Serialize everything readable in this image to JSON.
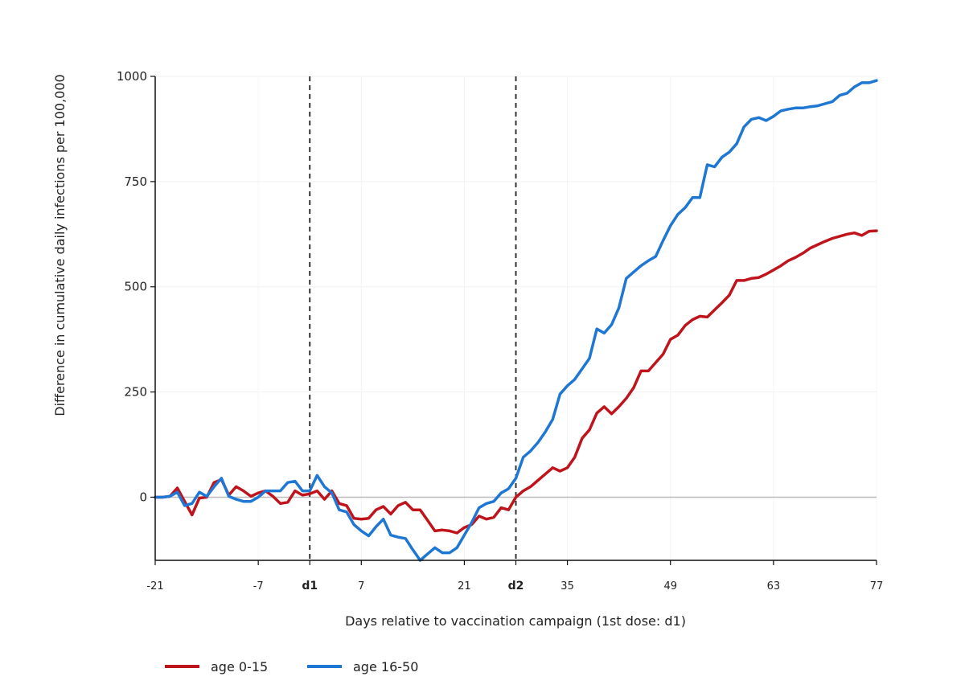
{
  "chart_data": {
    "type": "line",
    "title": "",
    "xlabel": "Days relative to vaccination campaign (1st dose: d1)",
    "ylabel": "Difference in cumulative daily infections per 100,000",
    "xlim": [
      -21,
      77
    ],
    "ylim": [
      -150,
      1000
    ],
    "x_ticks": [
      {
        "value": -21,
        "label": "-21",
        "bold": false
      },
      {
        "value": -7,
        "label": "-7",
        "bold": false
      },
      {
        "value": 0,
        "label": "d1",
        "bold": true
      },
      {
        "value": 7,
        "label": "7",
        "bold": false
      },
      {
        "value": 21,
        "label": "21",
        "bold": false
      },
      {
        "value": 28,
        "label": "d2",
        "bold": true
      },
      {
        "value": 35,
        "label": "35",
        "bold": false
      },
      {
        "value": 49,
        "label": "49",
        "bold": false
      },
      {
        "value": 63,
        "label": "63",
        "bold": false
      },
      {
        "value": 77,
        "label": "77",
        "bold": false
      }
    ],
    "y_ticks": [
      0,
      250,
      500,
      750,
      1000
    ],
    "vlines": [
      0,
      28
    ],
    "hline": 0,
    "grid": true,
    "legend_position": "bottom-left",
    "colors": {
      "age_0_15": "#c0141c",
      "age_16_50": "#1f77d4",
      "zero_line": "#bbbbbb",
      "vline": "#333333"
    },
    "series": [
      {
        "name": "age 0-15",
        "color": "#c0141c",
        "points": [
          [
            -21,
            0
          ],
          [
            -20,
            0
          ],
          [
            -19,
            2
          ],
          [
            -18,
            22
          ],
          [
            -17,
            -10
          ],
          [
            -16,
            -42
          ],
          [
            -15,
            -2
          ],
          [
            -14,
            0
          ],
          [
            -13,
            35
          ],
          [
            -12,
            42
          ],
          [
            -11,
            5
          ],
          [
            -10,
            25
          ],
          [
            -9,
            15
          ],
          [
            -8,
            2
          ],
          [
            -7,
            10
          ],
          [
            -6,
            15
          ],
          [
            -5,
            2
          ],
          [
            -4,
            -15
          ],
          [
            -3,
            -12
          ],
          [
            -2,
            15
          ],
          [
            -1,
            5
          ],
          [
            0,
            8
          ],
          [
            1,
            15
          ],
          [
            2,
            -5
          ],
          [
            3,
            15
          ],
          [
            4,
            -15
          ],
          [
            5,
            -20
          ],
          [
            6,
            -50
          ],
          [
            7,
            -52
          ],
          [
            8,
            -50
          ],
          [
            9,
            -30
          ],
          [
            10,
            -22
          ],
          [
            11,
            -40
          ],
          [
            12,
            -20
          ],
          [
            13,
            -12
          ],
          [
            14,
            -30
          ],
          [
            15,
            -30
          ],
          [
            16,
            -55
          ],
          [
            17,
            -80
          ],
          [
            18,
            -78
          ],
          [
            19,
            -80
          ],
          [
            20,
            -85
          ],
          [
            21,
            -72
          ],
          [
            22,
            -65
          ],
          [
            23,
            -45
          ],
          [
            24,
            -52
          ],
          [
            25,
            -48
          ],
          [
            26,
            -25
          ],
          [
            27,
            -30
          ],
          [
            28,
            0
          ],
          [
            29,
            15
          ],
          [
            30,
            25
          ],
          [
            31,
            40
          ],
          [
            32,
            55
          ],
          [
            33,
            70
          ],
          [
            34,
            62
          ],
          [
            35,
            70
          ],
          [
            36,
            95
          ],
          [
            37,
            140
          ],
          [
            38,
            160
          ],
          [
            39,
            200
          ],
          [
            40,
            215
          ],
          [
            41,
            198
          ],
          [
            42,
            215
          ],
          [
            43,
            235
          ],
          [
            44,
            260
          ],
          [
            45,
            300
          ],
          [
            46,
            300
          ],
          [
            47,
            320
          ],
          [
            48,
            340
          ],
          [
            49,
            375
          ],
          [
            50,
            385
          ],
          [
            51,
            408
          ],
          [
            52,
            422
          ],
          [
            53,
            430
          ],
          [
            54,
            428
          ],
          [
            55,
            445
          ],
          [
            56,
            462
          ],
          [
            57,
            480
          ],
          [
            58,
            515
          ],
          [
            59,
            515
          ],
          [
            60,
            520
          ],
          [
            61,
            522
          ],
          [
            62,
            530
          ],
          [
            63,
            540
          ],
          [
            64,
            550
          ],
          [
            65,
            562
          ],
          [
            66,
            570
          ],
          [
            67,
            580
          ],
          [
            68,
            592
          ],
          [
            69,
            600
          ],
          [
            70,
            608
          ],
          [
            71,
            615
          ],
          [
            72,
            620
          ],
          [
            73,
            625
          ],
          [
            74,
            628
          ],
          [
            75,
            622
          ],
          [
            76,
            632
          ],
          [
            77,
            633
          ]
        ]
      },
      {
        "name": "age 16-50",
        "color": "#1f77d4",
        "points": [
          [
            -21,
            0
          ],
          [
            -20,
            0
          ],
          [
            -19,
            2
          ],
          [
            -18,
            12
          ],
          [
            -17,
            -20
          ],
          [
            -16,
            -15
          ],
          [
            -15,
            12
          ],
          [
            -14,
            2
          ],
          [
            -13,
            25
          ],
          [
            -12,
            45
          ],
          [
            -11,
            2
          ],
          [
            -10,
            -5
          ],
          [
            -9,
            -10
          ],
          [
            -8,
            -10
          ],
          [
            -7,
            0
          ],
          [
            -6,
            15
          ],
          [
            -5,
            15
          ],
          [
            -4,
            15
          ],
          [
            -3,
            35
          ],
          [
            -2,
            38
          ],
          [
            -1,
            15
          ],
          [
            0,
            15
          ],
          [
            1,
            52
          ],
          [
            2,
            25
          ],
          [
            3,
            10
          ],
          [
            4,
            -30
          ],
          [
            5,
            -35
          ],
          [
            6,
            -65
          ],
          [
            7,
            -80
          ],
          [
            8,
            -92
          ],
          [
            9,
            -70
          ],
          [
            10,
            -52
          ],
          [
            11,
            -90
          ],
          [
            12,
            -95
          ],
          [
            13,
            -98
          ],
          [
            14,
            -125
          ],
          [
            15,
            -150
          ],
          [
            16,
            -135
          ],
          [
            17,
            -120
          ],
          [
            18,
            -132
          ],
          [
            19,
            -132
          ],
          [
            20,
            -120
          ],
          [
            21,
            -90
          ],
          [
            22,
            -60
          ],
          [
            23,
            -25
          ],
          [
            24,
            -15
          ],
          [
            25,
            -10
          ],
          [
            26,
            10
          ],
          [
            27,
            20
          ],
          [
            28,
            45
          ],
          [
            29,
            95
          ],
          [
            30,
            110
          ],
          [
            31,
            130
          ],
          [
            32,
            155
          ],
          [
            33,
            185
          ],
          [
            34,
            245
          ],
          [
            35,
            265
          ],
          [
            36,
            280
          ],
          [
            37,
            305
          ],
          [
            38,
            330
          ],
          [
            39,
            400
          ],
          [
            40,
            390
          ],
          [
            41,
            410
          ],
          [
            42,
            450
          ],
          [
            43,
            520
          ],
          [
            44,
            535
          ],
          [
            45,
            550
          ],
          [
            46,
            562
          ],
          [
            47,
            572
          ],
          [
            48,
            610
          ],
          [
            49,
            645
          ],
          [
            50,
            672
          ],
          [
            51,
            688
          ],
          [
            52,
            712
          ],
          [
            53,
            712
          ],
          [
            54,
            790
          ],
          [
            55,
            785
          ],
          [
            56,
            808
          ],
          [
            57,
            820
          ],
          [
            58,
            840
          ],
          [
            59,
            880
          ],
          [
            60,
            898
          ],
          [
            61,
            902
          ],
          [
            62,
            895
          ],
          [
            63,
            905
          ],
          [
            64,
            918
          ],
          [
            65,
            922
          ],
          [
            66,
            925
          ],
          [
            67,
            925
          ],
          [
            68,
            928
          ],
          [
            69,
            930
          ],
          [
            70,
            935
          ],
          [
            71,
            940
          ],
          [
            72,
            955
          ],
          [
            73,
            960
          ],
          [
            74,
            975
          ],
          [
            75,
            985
          ],
          [
            76,
            985
          ],
          [
            77,
            990
          ]
        ]
      }
    ]
  }
}
